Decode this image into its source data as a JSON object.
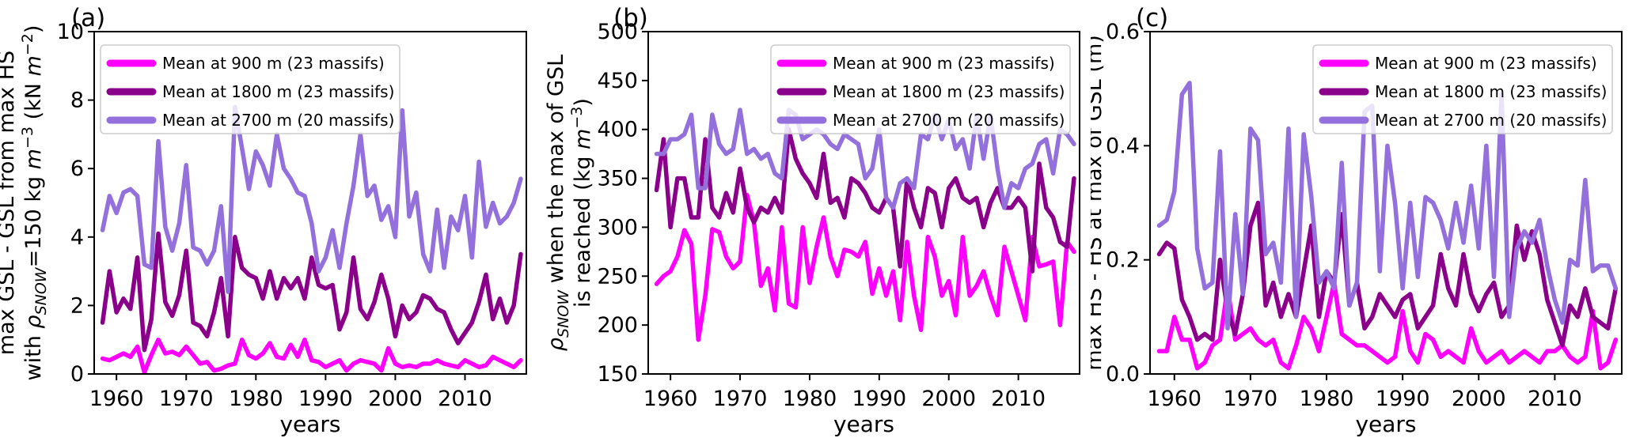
{
  "figure": {
    "background": "#ffffff",
    "description": "Three-panel line figure of annual snow statistics by elevation"
  },
  "colors": {
    "series_900": "#FF00FF",
    "series_1800": "#8B008B",
    "series_2700": "#9370DB",
    "axis": "#000000",
    "legend_border": "#cccccc"
  },
  "legend": {
    "items": [
      {
        "label": "Mean at 900 m (23 massifs)",
        "color": "#FF00FF"
      },
      {
        "label": "Mean at 1800 m (23 massifs)",
        "color": "#8B008B"
      },
      {
        "label": "Mean at 2700 m (20 massifs)",
        "color": "#9370DB"
      }
    ]
  },
  "chart_data": [
    {
      "type": "line",
      "panel_label": "(a)",
      "xlabel": "years",
      "ylabel_lines": [
        [
          {
            "t": "max GSL - GSL from max HS"
          }
        ],
        [
          {
            "t": "with "
          },
          {
            "t": "ρ",
            "k": "i"
          },
          {
            "t": "SNOW",
            "k": "sub"
          },
          {
            "t": "=150 kg ",
            "k": "n"
          },
          {
            "t": "m",
            "k": "i"
          },
          {
            "t": "−3",
            "k": "sup"
          },
          {
            "t": " (kN "
          },
          {
            "t": "m",
            "k": "i"
          },
          {
            "t": "−2",
            "k": "sup"
          },
          {
            "t": ")"
          }
        ]
      ],
      "xlim": [
        1956.8,
        2018.8
      ],
      "ylim": [
        0,
        10
      ],
      "xticks": [
        1960,
        1970,
        1980,
        1990,
        2000,
        2010
      ],
      "xtick_labels": [
        "1960",
        "1970",
        "1980",
        "1990",
        "2000",
        "2010"
      ],
      "yticks": [
        0,
        2,
        4,
        6,
        8,
        10
      ],
      "ytick_labels": [
        "0",
        "2",
        "4",
        "6",
        "8",
        "10"
      ],
      "years_range": [
        1958,
        2018
      ],
      "legend_position": "upper left",
      "series": [
        {
          "name": "Mean at 900 m (23 massifs)",
          "color": "#FF00FF",
          "values": [
            0.45,
            0.4,
            0.5,
            0.6,
            0.5,
            0.8,
            0.05,
            0.55,
            1.0,
            0.6,
            0.65,
            0.55,
            0.8,
            0.55,
            0.3,
            0.35,
            0.1,
            0.15,
            0.25,
            0.3,
            1.0,
            0.55,
            0.45,
            0.6,
            0.9,
            0.5,
            0.45,
            0.85,
            0.5,
            1.0,
            0.4,
            0.35,
            0.2,
            0.3,
            0.4,
            0.1,
            0.3,
            0.4,
            0.35,
            0.3,
            0.1,
            0.75,
            0.3,
            0.2,
            0.25,
            0.2,
            0.3,
            0.3,
            0.4,
            0.3,
            0.25,
            0.2,
            0.4,
            0.3,
            0.2,
            0.25,
            0.5,
            0.4,
            0.3,
            0.2,
            0.4
          ]
        },
        {
          "name": "Mean at 1800 m (23 massifs)",
          "color": "#8B008B",
          "values": [
            1.5,
            3.0,
            1.8,
            2.2,
            1.9,
            3.4,
            0.7,
            1.6,
            4.1,
            2.1,
            1.7,
            2.3,
            3.6,
            1.5,
            1.4,
            1.1,
            1.8,
            2.8,
            1.1,
            4.0,
            3.1,
            2.9,
            2.8,
            2.2,
            3.0,
            2.2,
            2.8,
            2.5,
            2.8,
            2.2,
            3.4,
            2.6,
            2.5,
            2.6,
            1.3,
            1.8,
            3.4,
            1.9,
            1.6,
            2.1,
            2.9,
            2.2,
            1.1,
            2.0,
            1.6,
            1.8,
            2.3,
            2.2,
            1.9,
            1.8,
            1.3,
            0.9,
            1.2,
            1.5,
            2.1,
            2.9,
            1.6,
            2.2,
            1.5,
            2.0,
            3.5
          ]
        },
        {
          "name": "Mean at 2700 m (20 massifs)",
          "color": "#9370DB",
          "values": [
            4.2,
            5.2,
            4.7,
            5.3,
            5.4,
            5.2,
            3.2,
            3.1,
            6.8,
            4.3,
            3.6,
            4.4,
            6.1,
            3.7,
            3.6,
            3.2,
            3.6,
            4.9,
            2.4,
            7.8,
            6.6,
            5.4,
            6.5,
            6.1,
            5.5,
            7.0,
            6.0,
            5.7,
            5.3,
            5.2,
            4.4,
            3.0,
            3.4,
            4.2,
            3.1,
            4.4,
            5.5,
            7.0,
            5.2,
            5.5,
            4.5,
            4.9,
            4.0,
            7.7,
            4.6,
            5.3,
            3.5,
            3.0,
            4.8,
            3.1,
            4.6,
            4.2,
            5.2,
            3.4,
            6.2,
            4.3,
            5.0,
            4.4,
            4.6,
            5.0,
            5.7
          ]
        }
      ]
    },
    {
      "type": "line",
      "panel_label": "(b)",
      "xlabel": "years",
      "ylabel_lines": [
        [
          {
            "t": "ρ",
            "k": "i"
          },
          {
            "t": "SNOW",
            "k": "sub"
          },
          {
            "t": " when the max of GSL",
            "k": "n"
          }
        ],
        [
          {
            "t": "is reached (kg "
          },
          {
            "t": "m",
            "k": "i"
          },
          {
            "t": "−3",
            "k": "sup"
          },
          {
            "t": ")"
          }
        ]
      ],
      "xlim": [
        1956.8,
        2018.8
      ],
      "ylim": [
        150,
        500
      ],
      "xticks": [
        1960,
        1970,
        1980,
        1990,
        2000,
        2010
      ],
      "xtick_labels": [
        "1960",
        "1970",
        "1980",
        "1990",
        "2000",
        "2010"
      ],
      "yticks": [
        150,
        200,
        250,
        300,
        350,
        400,
        450,
        500
      ],
      "ytick_labels": [
        "150",
        "200",
        "250",
        "300",
        "350",
        "400",
        "450",
        "500"
      ],
      "years_range": [
        1958,
        2018
      ],
      "legend_position": "upper right",
      "series": [
        {
          "name": "Mean at 900 m (23 massifs)",
          "color": "#FF00FF",
          "values": [
            242,
            250,
            255,
            270,
            297,
            283,
            185,
            230,
            298,
            295,
            270,
            258,
            265,
            333,
            305,
            240,
            258,
            215,
            300,
            222,
            218,
            300,
            243,
            280,
            310,
            270,
            250,
            277,
            275,
            270,
            285,
            232,
            258,
            230,
            255,
            205,
            285,
            230,
            195,
            290,
            270,
            230,
            245,
            210,
            290,
            230,
            240,
            255,
            230,
            210,
            280,
            255,
            230,
            205,
            290,
            260,
            262,
            265,
            200,
            285,
            275
          ]
        },
        {
          "name": "Mean at 1800 m (23 massifs)",
          "color": "#8B008B",
          "values": [
            338,
            390,
            300,
            350,
            350,
            310,
            310,
            390,
            320,
            310,
            335,
            315,
            360,
            320,
            305,
            320,
            315,
            330,
            315,
            400,
            370,
            355,
            345,
            330,
            375,
            325,
            330,
            310,
            350,
            345,
            335,
            320,
            315,
            330,
            320,
            260,
            350,
            320,
            300,
            340,
            335,
            300,
            340,
            350,
            330,
            325,
            330,
            300,
            325,
            340,
            320,
            320,
            330,
            320,
            255,
            365,
            320,
            310,
            285,
            280,
            350
          ]
        },
        {
          "name": "Mean at 2700 m (20 massifs)",
          "color": "#9370DB",
          "values": [
            375,
            375,
            390,
            390,
            395,
            415,
            340,
            340,
            415,
            385,
            375,
            380,
            420,
            375,
            380,
            370,
            375,
            355,
            350,
            420,
            415,
            390,
            395,
            400,
            395,
            385,
            380,
            395,
            390,
            385,
            350,
            360,
            400,
            330,
            320,
            345,
            350,
            340,
            395,
            390,
            415,
            390,
            410,
            380,
            390,
            360,
            415,
            370,
            415,
            360,
            320,
            345,
            340,
            360,
            365,
            385,
            390,
            355,
            400,
            395,
            385
          ]
        }
      ]
    },
    {
      "type": "line",
      "panel_label": "(c)",
      "xlabel": "years",
      "ylabel_lines": [
        [
          {
            "t": "max HS - HS at max of GSL (m)"
          }
        ]
      ],
      "xlim": [
        1956.8,
        2018.8
      ],
      "ylim": [
        0.0,
        0.6
      ],
      "xticks": [
        1960,
        1970,
        1980,
        1990,
        2000,
        2010
      ],
      "xtick_labels": [
        "1960",
        "1970",
        "1980",
        "1990",
        "2000",
        "2010"
      ],
      "yticks": [
        0.0,
        0.2,
        0.4,
        0.6
      ],
      "ytick_labels": [
        "0.0",
        "0.2",
        "0.4",
        "0.6"
      ],
      "years_range": [
        1958,
        2018
      ],
      "legend_position": "upper right",
      "series": [
        {
          "name": "Mean at 900 m (23 massifs)",
          "color": "#FF00FF",
          "values": [
            0.04,
            0.04,
            0.1,
            0.06,
            0.06,
            0.01,
            0.02,
            0.05,
            0.06,
            0.15,
            0.06,
            0.07,
            0.08,
            0.06,
            0.05,
            0.06,
            0.02,
            0.01,
            0.05,
            0.1,
            0.08,
            0.04,
            0.1,
            0.16,
            0.07,
            0.06,
            0.05,
            0.05,
            0.04,
            0.03,
            0.02,
            0.03,
            0.11,
            0.04,
            0.02,
            0.07,
            0.06,
            0.03,
            0.04,
            0.03,
            0.02,
            0.08,
            0.04,
            0.02,
            0.03,
            0.04,
            0.02,
            0.03,
            0.04,
            0.03,
            0.02,
            0.04,
            0.04,
            0.05,
            0.03,
            0.02,
            0.03,
            0.11,
            0.01,
            0.02,
            0.06
          ]
        },
        {
          "name": "Mean at 1800 m (23 massifs)",
          "color": "#8B008B",
          "values": [
            0.21,
            0.23,
            0.22,
            0.13,
            0.1,
            0.06,
            0.07,
            0.06,
            0.2,
            0.11,
            0.07,
            0.14,
            0.26,
            0.3,
            0.12,
            0.16,
            0.1,
            0.14,
            0.1,
            0.18,
            0.26,
            0.1,
            0.18,
            0.16,
            0.28,
            0.12,
            0.16,
            0.08,
            0.1,
            0.14,
            0.12,
            0.1,
            0.13,
            0.14,
            0.08,
            0.1,
            0.12,
            0.21,
            0.15,
            0.12,
            0.21,
            0.14,
            0.11,
            0.14,
            0.16,
            0.1,
            0.12,
            0.26,
            0.2,
            0.25,
            0.21,
            0.13,
            0.09,
            0.05,
            0.12,
            0.1,
            0.15,
            0.1,
            0.09,
            0.08,
            0.15
          ]
        },
        {
          "name": "Mean at 2700 m (20 massifs)",
          "color": "#9370DB",
          "values": [
            0.26,
            0.27,
            0.32,
            0.49,
            0.51,
            0.22,
            0.15,
            0.16,
            0.39,
            0.08,
            0.28,
            0.14,
            0.43,
            0.41,
            0.21,
            0.23,
            0.16,
            0.43,
            0.1,
            0.42,
            0.31,
            0.16,
            0.18,
            0.15,
            0.37,
            0.12,
            0.16,
            0.46,
            0.47,
            0.18,
            0.4,
            0.3,
            0.15,
            0.3,
            0.17,
            0.31,
            0.3,
            0.27,
            0.22,
            0.3,
            0.23,
            0.33,
            0.22,
            0.4,
            0.17,
            0.49,
            0.1,
            0.22,
            0.25,
            0.23,
            0.27,
            0.19,
            0.13,
            0.09,
            0.2,
            0.19,
            0.34,
            0.18,
            0.19,
            0.19,
            0.15
          ]
        }
      ]
    }
  ]
}
